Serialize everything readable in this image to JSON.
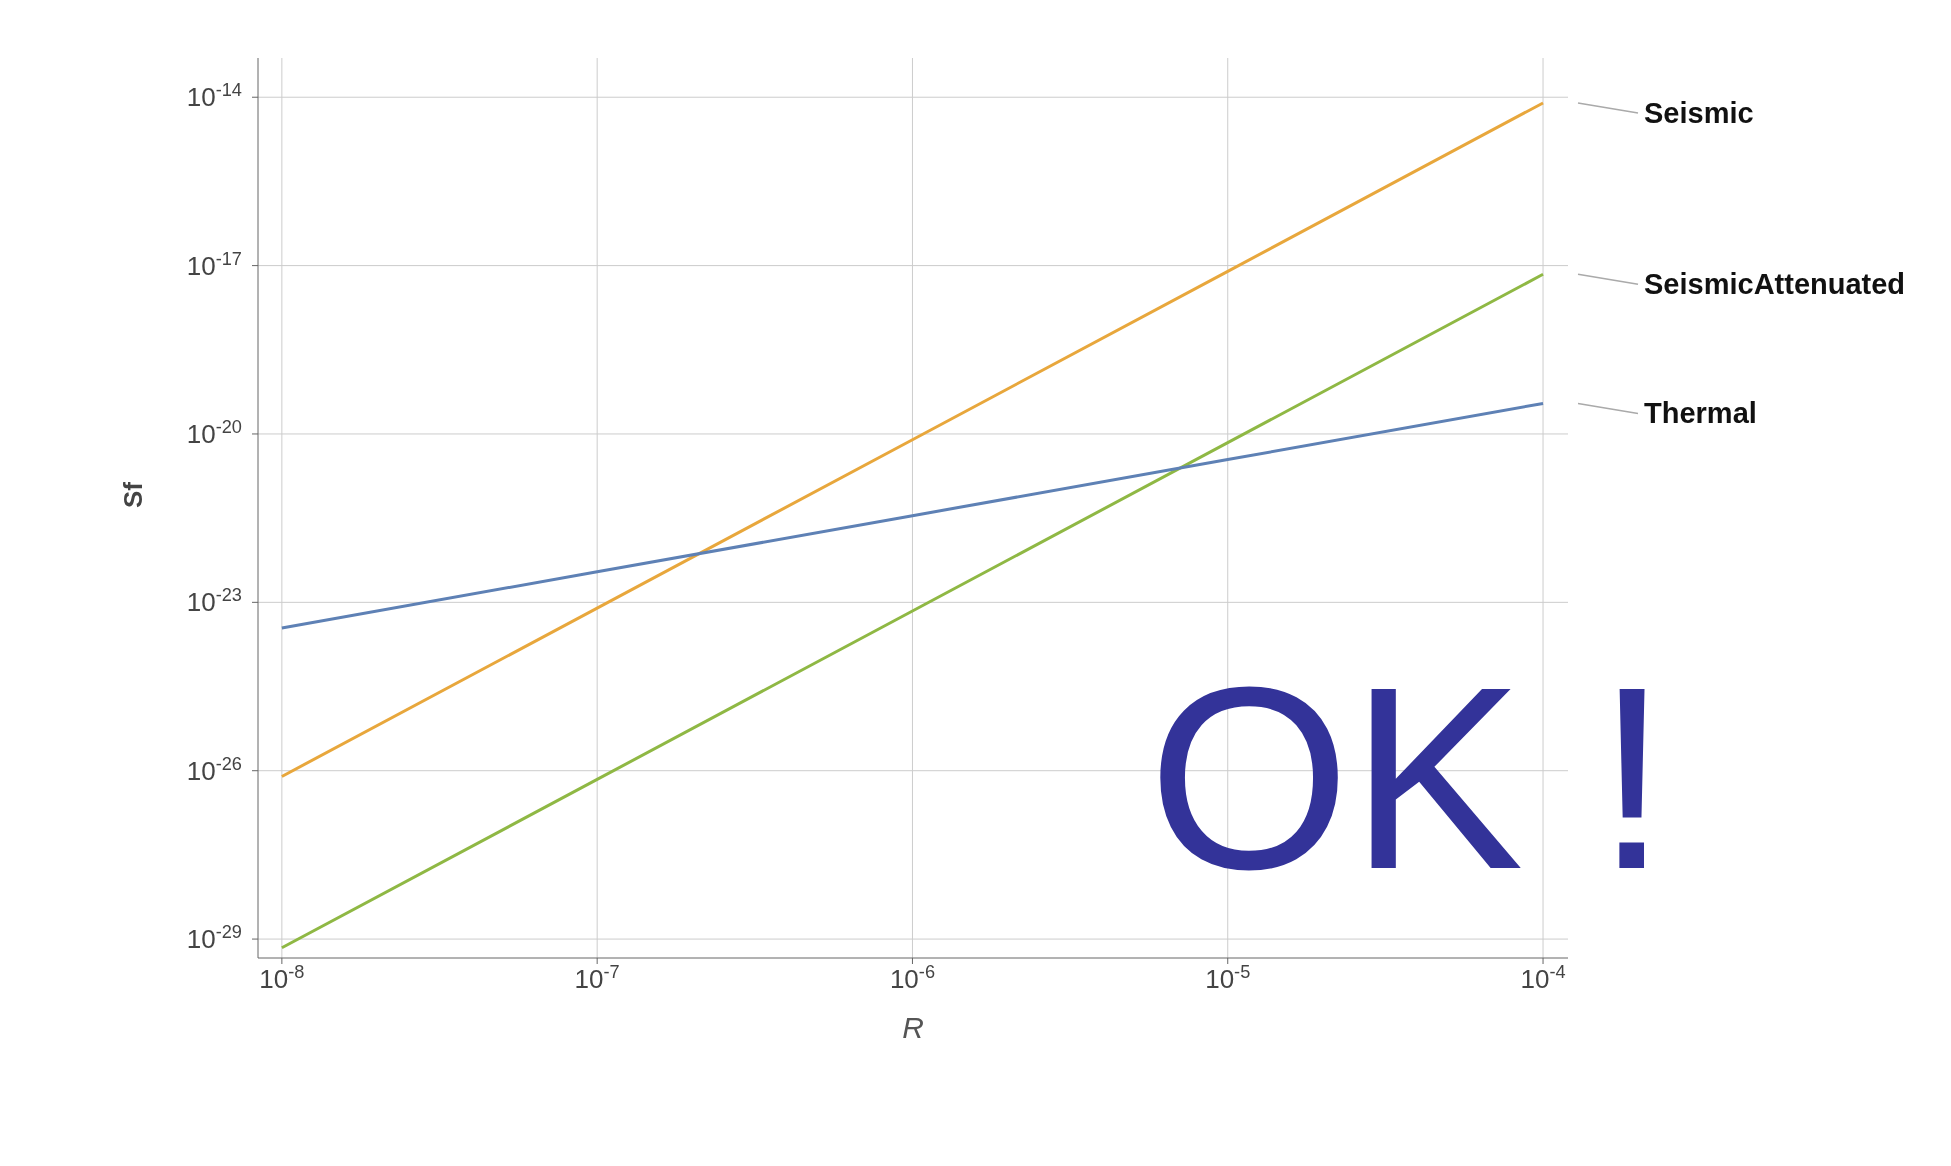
{
  "chart_data": {
    "type": "line",
    "xlabel": "R",
    "ylabel": "Sf",
    "log": "xy",
    "grid": true,
    "legend": "right",
    "marker": "none",
    "line_style": "solid",
    "x": [
      1e-08,
      1e-07,
      1e-06,
      1e-05,
      0.0001
    ],
    "xlim": [
      8.4e-09,
      0.00012
    ],
    "ylim": [
      4.6e-30,
      5e-14
    ],
    "xticks": [
      {
        "value": 1e-08,
        "label": "10$^{-8}$"
      },
      {
        "value": 1e-07,
        "label": "10$^{-7}$"
      },
      {
        "value": 1e-06,
        "label": "10$^{-6}$"
      },
      {
        "value": 1e-05,
        "label": "10$^{-5}$"
      },
      {
        "value": 0.0001,
        "label": "10$^{-4}$"
      }
    ],
    "yticks": [
      {
        "value": 1e-29,
        "label": "10$^{-29}$"
      },
      {
        "value": 1e-26,
        "label": "10$^{-26}$"
      },
      {
        "value": 1e-23,
        "label": "10$^{-23}$"
      },
      {
        "value": 1e-20,
        "label": "10$^{-20}$"
      },
      {
        "value": 1e-17,
        "label": "10$^{-17}$"
      },
      {
        "value": 1e-14,
        "label": "10$^{-14}$"
      }
    ],
    "series": [
      {
        "name": "Seismic",
        "color": "#e8a73c",
        "values": [
          7.9e-27,
          7.9e-24,
          7.9e-21,
          7.9e-18,
          7.9e-15
        ]
      },
      {
        "name": "SeismicAttenuated",
        "color": "#8fb844",
        "values": [
          7e-30,
          7e-27,
          7e-24,
          7e-21,
          7e-18
        ]
      },
      {
        "name": "Thermal",
        "color": "#5e81b5",
        "values": [
          3.5e-24,
          3.5e-23,
          3.5e-22,
          3.5e-21,
          3.5e-20
        ]
      }
    ],
    "annotations": [
      "OK !"
    ]
  }
}
